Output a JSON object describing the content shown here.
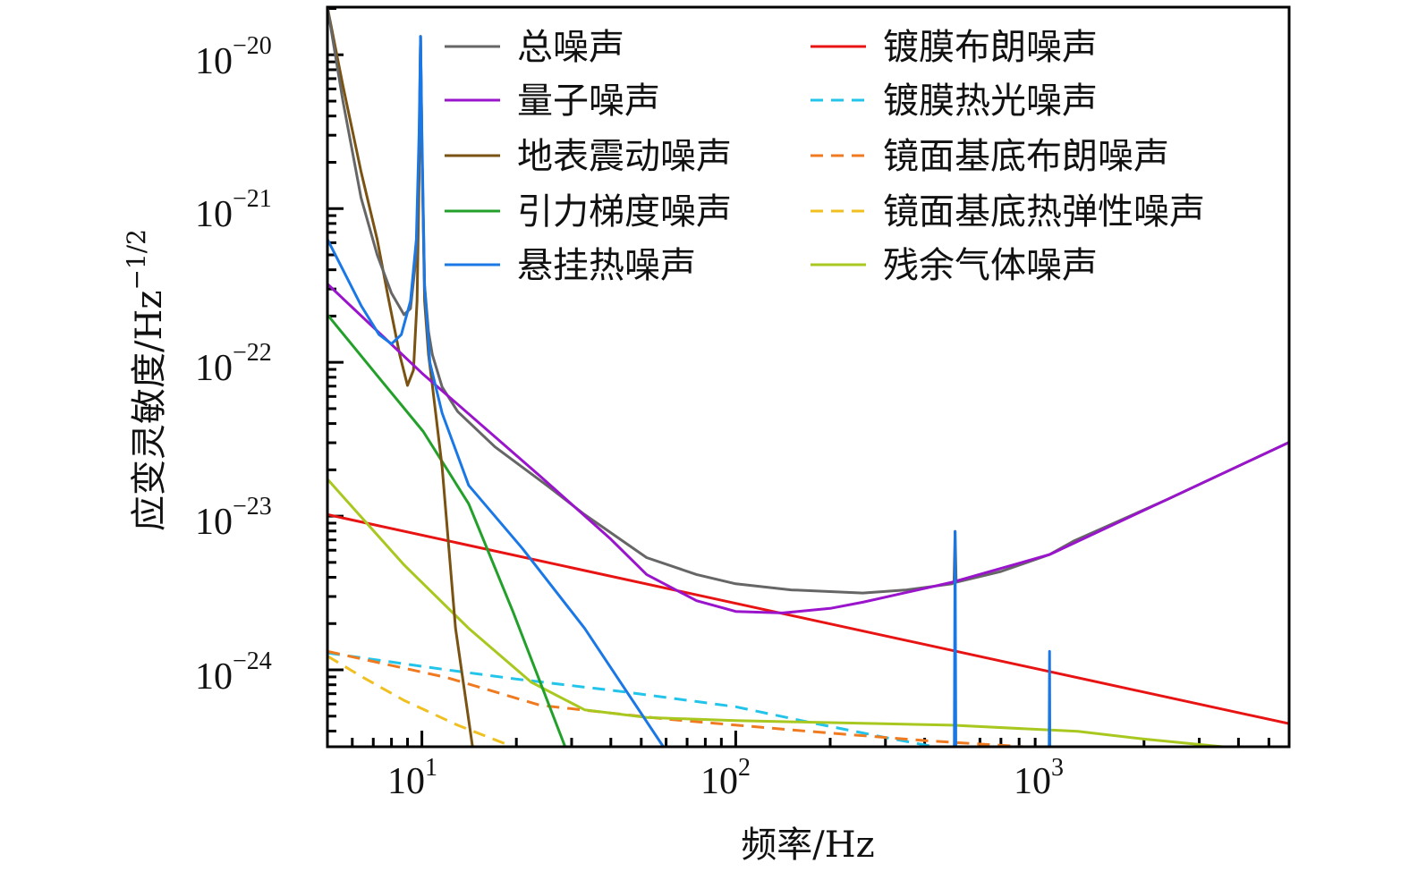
{
  "chart_data": {
    "type": "line",
    "title": "",
    "xlabel": "频率/Hz",
    "ylabel_main": "应变灵敏度/Hz",
    "ylabel_exp": "−1/2",
    "xscale": "log",
    "yscale": "log",
    "xlim": [
      5,
      5800
    ],
    "ylim_log10": [
      -24.5,
      -19.69
    ],
    "grid": false,
    "legend_placement": "top-right, two columns",
    "x_ticks": [
      {
        "base": "10",
        "exp": "1",
        "value": 10
      },
      {
        "base": "10",
        "exp": "2",
        "value": 100
      },
      {
        "base": "10",
        "exp": "3",
        "value": 1000
      }
    ],
    "y_ticks": [
      {
        "base": "10",
        "exp": "−20",
        "value": -20
      },
      {
        "base": "10",
        "exp": "−21",
        "value": -21
      },
      {
        "base": "10",
        "exp": "−22",
        "value": -22
      },
      {
        "base": "10",
        "exp": "−23",
        "value": -23
      },
      {
        "base": "10",
        "exp": "−24",
        "value": -24
      }
    ],
    "point_format": "[frequency_Hz, log10(strain)]",
    "series": [
      {
        "name": "总噪声",
        "color": "#666666",
        "dash": false,
        "column": 0,
        "points": [
          [
            5,
            -19.69
          ],
          [
            5.6,
            -20.3
          ],
          [
            6.4,
            -20.93
          ],
          [
            7.2,
            -21.3
          ],
          [
            8,
            -21.55
          ],
          [
            8.77,
            -21.69
          ],
          [
            9.2,
            -21.65
          ],
          [
            9.6,
            -21.3
          ],
          [
            9.8,
            -20.6
          ],
          [
            9.9,
            -19.88
          ],
          [
            10.0,
            -20.6
          ],
          [
            10.2,
            -21.5
          ],
          [
            10.5,
            -21.8
          ],
          [
            10.8,
            -21.95
          ],
          [
            11.6,
            -22.16
          ],
          [
            13,
            -22.32
          ],
          [
            17.1,
            -22.55
          ],
          [
            25,
            -22.8
          ],
          [
            33,
            -22.99
          ],
          [
            52,
            -23.27
          ],
          [
            75,
            -23.38
          ],
          [
            100,
            -23.44
          ],
          [
            150,
            -23.48
          ],
          [
            254,
            -23.5
          ],
          [
            350,
            -23.48
          ],
          [
            490,
            -23.44
          ],
          [
            496,
            -23.43
          ],
          [
            500,
            -23.1
          ],
          [
            504,
            -23.43
          ],
          [
            700,
            -23.36
          ],
          [
            1000,
            -23.25
          ],
          [
            1200,
            -23.16
          ],
          [
            2380,
            -22.89
          ],
          [
            5800,
            -22.52
          ]
        ]
      },
      {
        "name": "量子噪声",
        "color": "#9a14cc",
        "dash": false,
        "column": 0,
        "points": [
          [
            5,
            -21.49
          ],
          [
            10,
            -22.07
          ],
          [
            23.8,
            -22.74
          ],
          [
            40,
            -23.15
          ],
          [
            52,
            -23.38
          ],
          [
            75,
            -23.55
          ],
          [
            100,
            -23.62
          ],
          [
            141,
            -23.63
          ],
          [
            200,
            -23.6
          ],
          [
            254,
            -23.56
          ],
          [
            490,
            -23.43
          ],
          [
            1000,
            -23.25
          ],
          [
            2380,
            -22.89
          ],
          [
            5800,
            -22.52
          ]
        ]
      },
      {
        "name": "地表震动噪声",
        "color": "#7a5212",
        "dash": false,
        "column": 0,
        "points": [
          [
            5,
            -19.69
          ],
          [
            5.6,
            -20.2
          ],
          [
            6.4,
            -20.76
          ],
          [
            7.2,
            -21.2
          ],
          [
            7.8,
            -21.57
          ],
          [
            8.5,
            -21.95
          ],
          [
            9.0,
            -22.15
          ],
          [
            9.4,
            -22.05
          ],
          [
            9.65,
            -21.6
          ],
          [
            9.8,
            -20.8
          ],
          [
            9.9,
            -19.88
          ],
          [
            10.0,
            -20.6
          ],
          [
            10.2,
            -21.6
          ],
          [
            10.5,
            -21.95
          ],
          [
            10.8,
            -22.15
          ],
          [
            11.6,
            -22.68
          ],
          [
            12.8,
            -23.73
          ],
          [
            14.5,
            -24.5
          ],
          [
            15,
            -24.7
          ]
        ]
      },
      {
        "name": "引力梯度噪声",
        "color": "#22a02a",
        "dash": false,
        "column": 0,
        "points": [
          [
            5,
            -21.69
          ],
          [
            7.3,
            -22.1
          ],
          [
            10.1,
            -22.45
          ],
          [
            14.1,
            -22.92
          ],
          [
            19.5,
            -23.62
          ],
          [
            28.6,
            -24.5
          ],
          [
            30,
            -24.6
          ]
        ]
      },
      {
        "name": "悬挂热噪声",
        "color": "#1a78e6",
        "dash": false,
        "column": 0,
        "points": [
          [
            5,
            -21.2
          ],
          [
            6.4,
            -21.63
          ],
          [
            7.3,
            -21.82
          ],
          [
            8,
            -21.88
          ],
          [
            8.6,
            -21.82
          ],
          [
            9.2,
            -21.6
          ],
          [
            9.6,
            -21.2
          ],
          [
            9.8,
            -20.5
          ],
          [
            9.9,
            -19.88
          ],
          [
            10.0,
            -20.5
          ],
          [
            10.2,
            -21.5
          ],
          [
            10.6,
            -22.0
          ],
          [
            11.6,
            -22.33
          ],
          [
            14.1,
            -22.8
          ],
          [
            20.9,
            -23.21
          ],
          [
            33,
            -23.73
          ],
          [
            58.8,
            -24.5
          ],
          [
            62,
            -24.6
          ],
          [
            497,
            -24.6
          ],
          [
            500,
            -23.1
          ],
          [
            503,
            -24.6
          ],
          [
            997,
            -24.6
          ],
          [
            1000,
            -23.88
          ],
          [
            1003,
            -24.6
          ]
        ]
      },
      {
        "name": "镀膜布朗噪声",
        "color": "#e81414",
        "dash": false,
        "column": 1,
        "points": [
          [
            5,
            -22.99
          ],
          [
            5800,
            -24.35
          ]
        ]
      },
      {
        "name": "镀膜热光噪声",
        "color": "#22c4ea",
        "dash": true,
        "column": 1,
        "points": [
          [
            5,
            -23.89
          ],
          [
            12,
            -24.0
          ],
          [
            20,
            -24.06
          ],
          [
            43,
            -24.14
          ],
          [
            100,
            -24.24
          ],
          [
            171,
            -24.34
          ],
          [
            300,
            -24.44
          ],
          [
            430,
            -24.5
          ],
          [
            500,
            -24.55
          ]
        ]
      },
      {
        "name": "镜面基底布朗噪声",
        "color": "#f07a20",
        "dash": true,
        "column": 1,
        "points": [
          [
            5,
            -23.88
          ],
          [
            12,
            -24.05
          ],
          [
            23.8,
            -24.23
          ],
          [
            60,
            -24.32
          ],
          [
            171,
            -24.4
          ],
          [
            400,
            -24.46
          ],
          [
            830,
            -24.5
          ],
          [
            900,
            -24.55
          ]
        ]
      },
      {
        "name": "镜面基底热弹性噪声",
        "color": "#f0c020",
        "dash": true,
        "column": 1,
        "points": [
          [
            5,
            -23.91
          ],
          [
            6.5,
            -24.05
          ],
          [
            8.8,
            -24.2
          ],
          [
            13,
            -24.36
          ],
          [
            19.5,
            -24.5
          ],
          [
            21,
            -24.55
          ]
        ]
      },
      {
        "name": "残余气体噪声",
        "color": "#a8c820",
        "dash": false,
        "column": 1,
        "points": [
          [
            5,
            -22.76
          ],
          [
            8.8,
            -23.32
          ],
          [
            14.1,
            -23.73
          ],
          [
            22.3,
            -24.08
          ],
          [
            33,
            -24.26
          ],
          [
            52,
            -24.31
          ],
          [
            100,
            -24.33
          ],
          [
            171,
            -24.34
          ],
          [
            490,
            -24.36
          ],
          [
            1230,
            -24.4
          ],
          [
            2000,
            -24.45
          ],
          [
            3560,
            -24.5
          ],
          [
            4000,
            -24.52
          ]
        ]
      }
    ]
  }
}
